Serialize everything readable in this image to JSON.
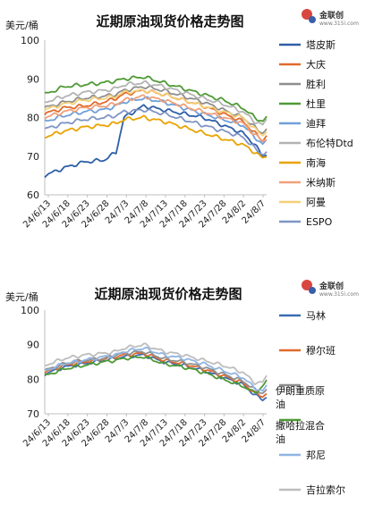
{
  "chart_data": [
    {
      "type": "line",
      "title": "近期原油现货价格走势图",
      "unit_label": "美元/桶",
      "logo_text": "金联创",
      "logo_sub": "www.315i.com",
      "ylim": [
        60,
        100
      ],
      "y_ticks": [
        60,
        70,
        80,
        90,
        100
      ],
      "x_ticks": [
        "24/6/13",
        "24/6/18",
        "24/6/23",
        "24/6/28",
        "24/7/3",
        "24/7/8",
        "24/7/13",
        "24/7/18",
        "24/7/23",
        "24/7/28",
        "24/8/2",
        "24/8/7"
      ],
      "x_start": "2024-06-13",
      "x_end": "2024-08-08",
      "grid": false,
      "legend_position": "right",
      "anchor_dates": [
        "2024-06-13",
        "2024-06-18",
        "2024-06-23",
        "2024-06-28",
        "2024-07-01",
        "2024-07-03",
        "2024-07-08",
        "2024-07-13",
        "2024-07-18",
        "2024-07-23",
        "2024-07-28",
        "2024-08-02",
        "2024-08-05",
        "2024-08-07",
        "2024-08-08"
      ],
      "series": [
        {
          "name": "塔皮斯",
          "color": "#2e5fa8",
          "values": [
            65,
            67,
            68.5,
            69,
            71,
            80,
            83,
            82,
            81,
            80,
            78,
            76,
            73,
            70,
            70.5
          ]
        },
        {
          "name": "大庆",
          "color": "#e06a2c",
          "values": [
            81,
            82.5,
            83,
            84,
            85,
            86,
            87,
            86,
            84.5,
            83,
            81,
            79,
            76,
            74,
            75.5
          ]
        },
        {
          "name": "胜利",
          "color": "#8e8e8e",
          "values": [
            82.5,
            84,
            85,
            85.5,
            86,
            87,
            88,
            87,
            85.5,
            84,
            82,
            80,
            77.5,
            76,
            77
          ]
        },
        {
          "name": "杜里",
          "color": "#4e9a35",
          "values": [
            86,
            88,
            88.5,
            89,
            89.5,
            90,
            90.5,
            89,
            87.5,
            86,
            84.5,
            82.5,
            80,
            79,
            80
          ]
        },
        {
          "name": "迪拜",
          "color": "#6f9fd8",
          "values": [
            79,
            80.5,
            81.5,
            82,
            83,
            84,
            85,
            84,
            82.5,
            81,
            79.5,
            78,
            75,
            73,
            74
          ]
        },
        {
          "name": "布伦特Dtd",
          "color": "#b3b3b3",
          "values": [
            84,
            85.5,
            86.5,
            87,
            87.5,
            88.5,
            89,
            88,
            86.5,
            85,
            83.5,
            81.5,
            79,
            78,
            79.5
          ]
        },
        {
          "name": "南海",
          "color": "#e8a300",
          "values": [
            75,
            76.5,
            77.5,
            78,
            78.5,
            79.5,
            80,
            79,
            77.5,
            76,
            74.5,
            73,
            71,
            69.5,
            70
          ]
        },
        {
          "name": "米纳斯",
          "color": "#f0a07a",
          "values": [
            80,
            81.5,
            82.5,
            83,
            83.5,
            84.5,
            85.5,
            84.5,
            83,
            81.5,
            80,
            78.5,
            75.5,
            74,
            74.5
          ]
        },
        {
          "name": "阿曼",
          "color": "#f5cf77",
          "values": [
            82,
            83.5,
            84.5,
            85,
            85.5,
            86.5,
            87,
            86,
            84.5,
            83,
            81.5,
            80,
            77,
            75.5,
            76.5
          ]
        },
        {
          "name": "ESPO",
          "color": "#7f94c4",
          "values": [
            77,
            78.5,
            79.5,
            80,
            80.5,
            81.5,
            82,
            81,
            79.5,
            78,
            76.5,
            75,
            72,
            70.5,
            71
          ]
        }
      ]
    },
    {
      "type": "line",
      "title": "近期原油现货价格走势图",
      "unit_label": "美元/桶",
      "logo_text": "金联创",
      "logo_sub": "www.315i.com",
      "ylim": [
        70,
        100
      ],
      "y_ticks": [
        70,
        80,
        90,
        100
      ],
      "x_ticks": [
        "24/6/13",
        "24/6/18",
        "24/6/23",
        "24/6/28",
        "24/7/3",
        "24/7/8",
        "24/7/13",
        "24/7/18",
        "24/7/23",
        "24/7/28",
        "24/8/2",
        "24/8/7"
      ],
      "x_start": "2024-06-13",
      "x_end": "2024-08-08",
      "grid": false,
      "legend_position": "right",
      "anchor_dates": [
        "2024-06-13",
        "2024-06-18",
        "2024-06-23",
        "2024-06-28",
        "2024-07-01",
        "2024-07-03",
        "2024-07-08",
        "2024-07-13",
        "2024-07-18",
        "2024-07-23",
        "2024-07-28",
        "2024-08-02",
        "2024-08-05",
        "2024-08-07",
        "2024-08-08"
      ],
      "series": [
        {
          "name": "马林",
          "color": "#3d6cb0",
          "values": [
            81.5,
            83.5,
            84.5,
            85.5,
            86,
            86.5,
            87,
            85,
            84,
            82.5,
            80.5,
            78.5,
            75.5,
            74,
            75
          ]
        },
        {
          "name": "穆尔班",
          "color": "#e06a2c",
          "values": [
            82,
            84,
            85,
            86,
            86.5,
            87,
            87.5,
            85.5,
            84.5,
            83,
            81,
            79,
            76,
            75,
            76
          ]
        },
        {
          "name": "伊朗重质原油",
          "color": "#8e8e8e",
          "values": [
            82.5,
            84.5,
            85.5,
            86,
            87,
            87.5,
            88,
            86,
            85,
            83.5,
            81.5,
            79.5,
            77,
            76,
            77
          ]
        },
        {
          "name": "撒哈拉混合油",
          "color": "#4e9a35",
          "values": [
            81,
            83,
            84,
            85,
            85.5,
            86,
            86.5,
            84.5,
            83.5,
            82,
            80,
            78,
            76,
            78,
            79.5
          ]
        },
        {
          "name": "邦尼",
          "color": "#8fb4e3",
          "values": [
            82.5,
            84.5,
            85.5,
            86.5,
            87,
            88,
            89,
            87,
            86,
            84.5,
            82.5,
            80.5,
            77.5,
            76.5,
            78
          ]
        },
        {
          "name": "吉拉索尔",
          "color": "#bdbdbd",
          "values": [
            84,
            86,
            87,
            87.5,
            88,
            89,
            90,
            88,
            87,
            85.5,
            84,
            82,
            79,
            79,
            81
          ]
        }
      ]
    }
  ]
}
